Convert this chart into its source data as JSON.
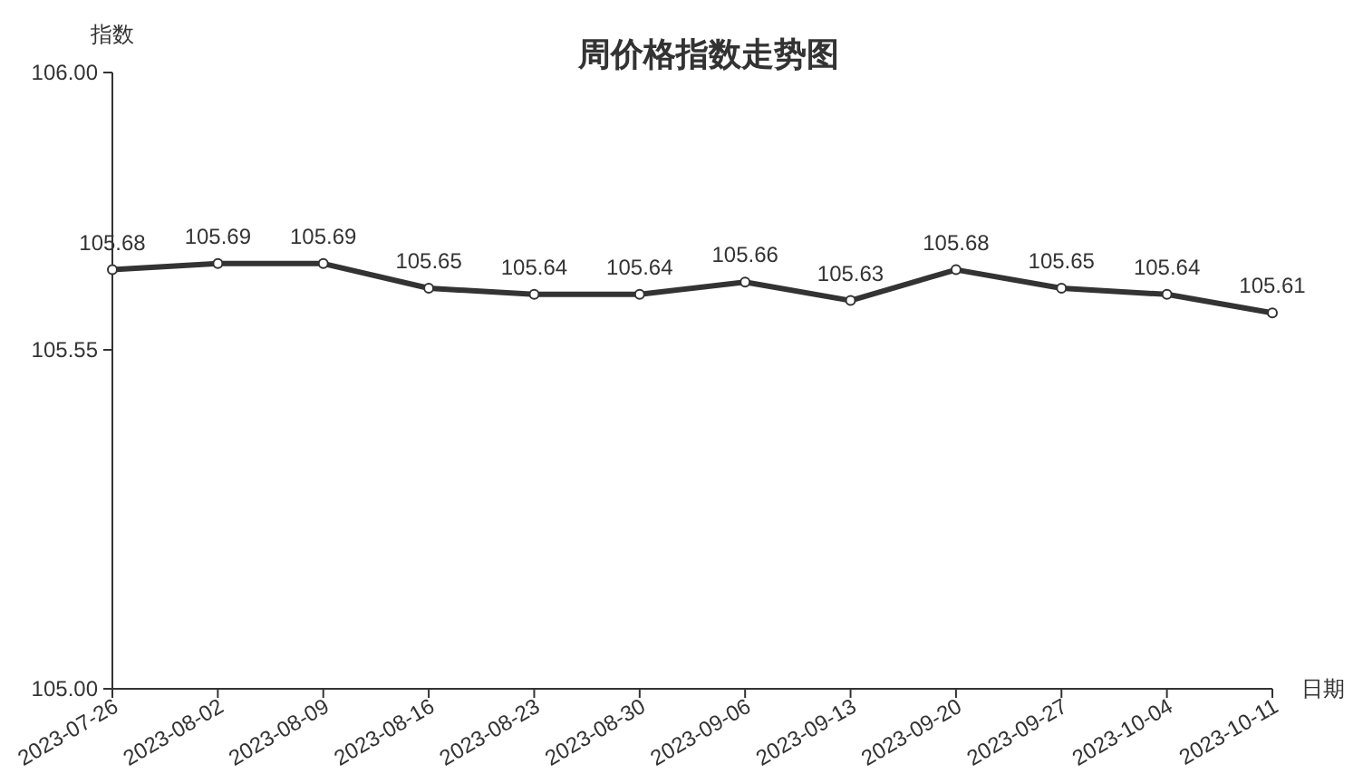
{
  "chart_data": {
    "type": "line",
    "title": "周价格指数走势图",
    "xlabel": "日期",
    "ylabel": "指数",
    "categories": [
      "2023-07-26",
      "2023-08-02",
      "2023-08-09",
      "2023-08-16",
      "2023-08-23",
      "2023-08-30",
      "2023-09-06",
      "2023-09-13",
      "2023-09-20",
      "2023-09-27",
      "2023-10-04",
      "2023-10-11"
    ],
    "series": [
      {
        "color": "#333333",
        "values": [
          105.68,
          105.69,
          105.69,
          105.65,
          105.64,
          105.64,
          105.66,
          105.63,
          105.68,
          105.65,
          105.64,
          105.61
        ]
      }
    ],
    "ylim": [
      105,
      106
    ],
    "yticks": [
      {
        "value": 105,
        "label": "105.00"
      },
      {
        "value": 105.55,
        "label": "105.55"
      },
      {
        "value": 106,
        "label": "106.00"
      }
    ],
    "data_labels": true,
    "marker": "circle",
    "line_style": "solid"
  }
}
